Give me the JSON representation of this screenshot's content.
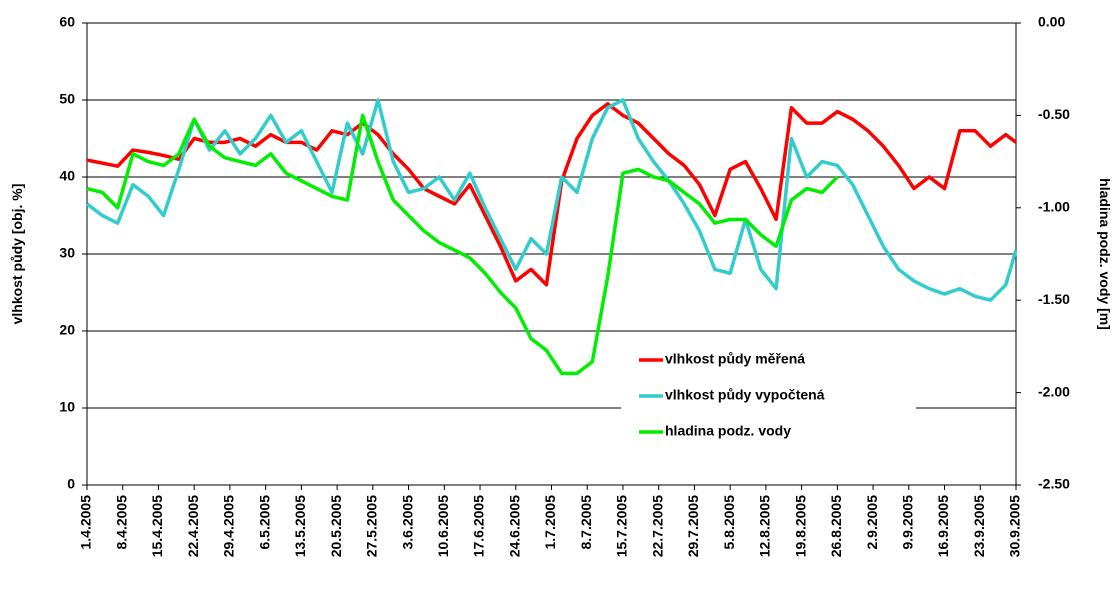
{
  "chart_data": {
    "type": "line",
    "y_label": "vlhkost půdy [obj. %]",
    "y2_label": "hladina podz. vody [m]",
    "x": [
      "1.4.2005",
      "4.4.2005",
      "7.4.2005",
      "10.4.2005",
      "13.4.2005",
      "16.4.2005",
      "19.4.2005",
      "22.4.2005",
      "25.4.2005",
      "28.4.2005",
      "1.5.2005",
      "4.5.2005",
      "7.5.2005",
      "10.5.2005",
      "13.5.2005",
      "16.5.2005",
      "19.5.2005",
      "22.5.2005",
      "25.5.2005",
      "28.5.2005",
      "31.5.2005",
      "3.6.2005",
      "6.6.2005",
      "9.6.2005",
      "12.6.2005",
      "15.6.2005",
      "18.6.2005",
      "21.6.2005",
      "24.6.2005",
      "27.6.2005",
      "30.6.2005",
      "3.7.2005",
      "6.7.2005",
      "9.7.2005",
      "12.7.2005",
      "15.7.2005",
      "18.7.2005",
      "21.7.2005",
      "24.7.2005",
      "27.7.2005",
      "30.7.2005",
      "2.8.2005",
      "5.8.2005",
      "8.8.2005",
      "11.8.2005",
      "14.8.2005",
      "17.8.2005",
      "20.8.2005",
      "23.8.2005",
      "26.8.2005",
      "29.8.2005",
      "1.9.2005",
      "4.9.2005",
      "7.9.2005",
      "10.9.2005",
      "13.9.2005",
      "16.9.2005",
      "19.9.2005",
      "22.9.2005",
      "25.9.2005",
      "28.9.2005",
      "30.9.2005"
    ],
    "series": [
      {
        "name": "vlhkost půdy měřená",
        "color": "#ff0000",
        "values": [
          42.2,
          41.8,
          41.4,
          43.5,
          43.2,
          42.8,
          42.3,
          45,
          44.5,
          44.5,
          45,
          44,
          45.5,
          44.5,
          44.5,
          43.5,
          46,
          45.5,
          47,
          45.5,
          43,
          41,
          38.5,
          37.5,
          36.5,
          39,
          35,
          31,
          26.5,
          28,
          26,
          39.5,
          45,
          48,
          49.5,
          48,
          47,
          45,
          43,
          41.5,
          39,
          35,
          41,
          42,
          38.5,
          34.5,
          49,
          47,
          47,
          48.5,
          47.5,
          46,
          44,
          41.5,
          38.5,
          40,
          38.5,
          46,
          46,
          44,
          45.5,
          44.5
        ]
      },
      {
        "name": "vlhkost půdy vypočtená",
        "color": "#33cccc",
        "values": [
          36.5,
          35,
          34,
          39,
          37.5,
          35,
          41,
          47.5,
          43.5,
          46,
          43,
          45,
          48,
          44.5,
          46,
          42,
          38,
          47,
          43,
          50,
          42,
          38,
          38.5,
          40,
          37,
          40.5,
          36,
          32,
          28,
          32,
          30,
          40,
          38,
          45,
          49,
          50,
          45,
          42,
          39.5,
          36.5,
          33,
          28,
          27.5,
          34.5,
          28,
          25.5,
          45,
          40,
          42,
          41.5,
          39,
          35,
          31,
          28,
          26.5,
          25.5,
          24.8,
          25.5,
          24.5,
          24,
          26,
          30.5
        ]
      },
      {
        "name": "hladina podz. vody",
        "color": "#00ee00",
        "axis": "y2",
        "values": [
          -0.896,
          -0.917,
          -1.0,
          -0.708,
          -0.75,
          -0.771,
          -0.708,
          -0.521,
          -0.667,
          -0.729,
          -0.75,
          -0.771,
          -0.708,
          -0.813,
          -0.854,
          -0.896,
          -0.938,
          -0.958,
          -0.5,
          -0.75,
          -0.958,
          -1.042,
          -1.125,
          -1.188,
          -1.229,
          -1.271,
          -1.354,
          -1.458,
          -1.542,
          -1.708,
          -1.771,
          -1.896,
          -1.896,
          -1.833,
          -1.375,
          -0.813,
          -0.792,
          -0.833,
          -0.854,
          -0.917,
          -0.979,
          -1.083,
          -1.063,
          -1.063,
          -1.146,
          -1.208,
          -0.958,
          -0.896,
          -0.917,
          -0.833,
          null,
          null,
          null,
          null,
          null,
          null,
          null,
          null,
          null,
          null,
          null,
          null
        ]
      }
    ],
    "xlim": [
      "1.4.2005",
      "30.9.2005"
    ],
    "xticks": [
      "1.4.2005",
      "8.4.2005",
      "15.4.2005",
      "22.4.2005",
      "29.4.2005",
      "6.5.2005",
      "13.5.2005",
      "20.5.2005",
      "27.5.2005",
      "3.6.2005",
      "10.6.2005",
      "17.6.2005",
      "24.6.2005",
      "1.7.2005",
      "8.7.2005",
      "15.7.2005",
      "22.7.2005",
      "29.7.2005",
      "5.8.2005",
      "12.8.2005",
      "19.8.2005",
      "26.8.2005",
      "2.9.2005",
      "9.9.2005",
      "16.9.2005",
      "23.9.2005",
      "30.9.2005"
    ],
    "ylim": [
      0,
      60
    ],
    "yticks": [
      0,
      10,
      20,
      30,
      40,
      50,
      60
    ],
    "y2lim": [
      -2.5,
      0
    ],
    "y2ticks": [
      {
        "value": -2.5,
        "label": "-2.50"
      },
      {
        "value": -2,
        "label": "-2.00"
      },
      {
        "value": -1.5,
        "label": "-1.50"
      },
      {
        "value": -1,
        "label": "-1.00"
      },
      {
        "value": -0.5,
        "label": "-0.50"
      },
      {
        "value": 0,
        "label": "0.00"
      }
    ],
    "grid": true,
    "legend": "lower right"
  }
}
